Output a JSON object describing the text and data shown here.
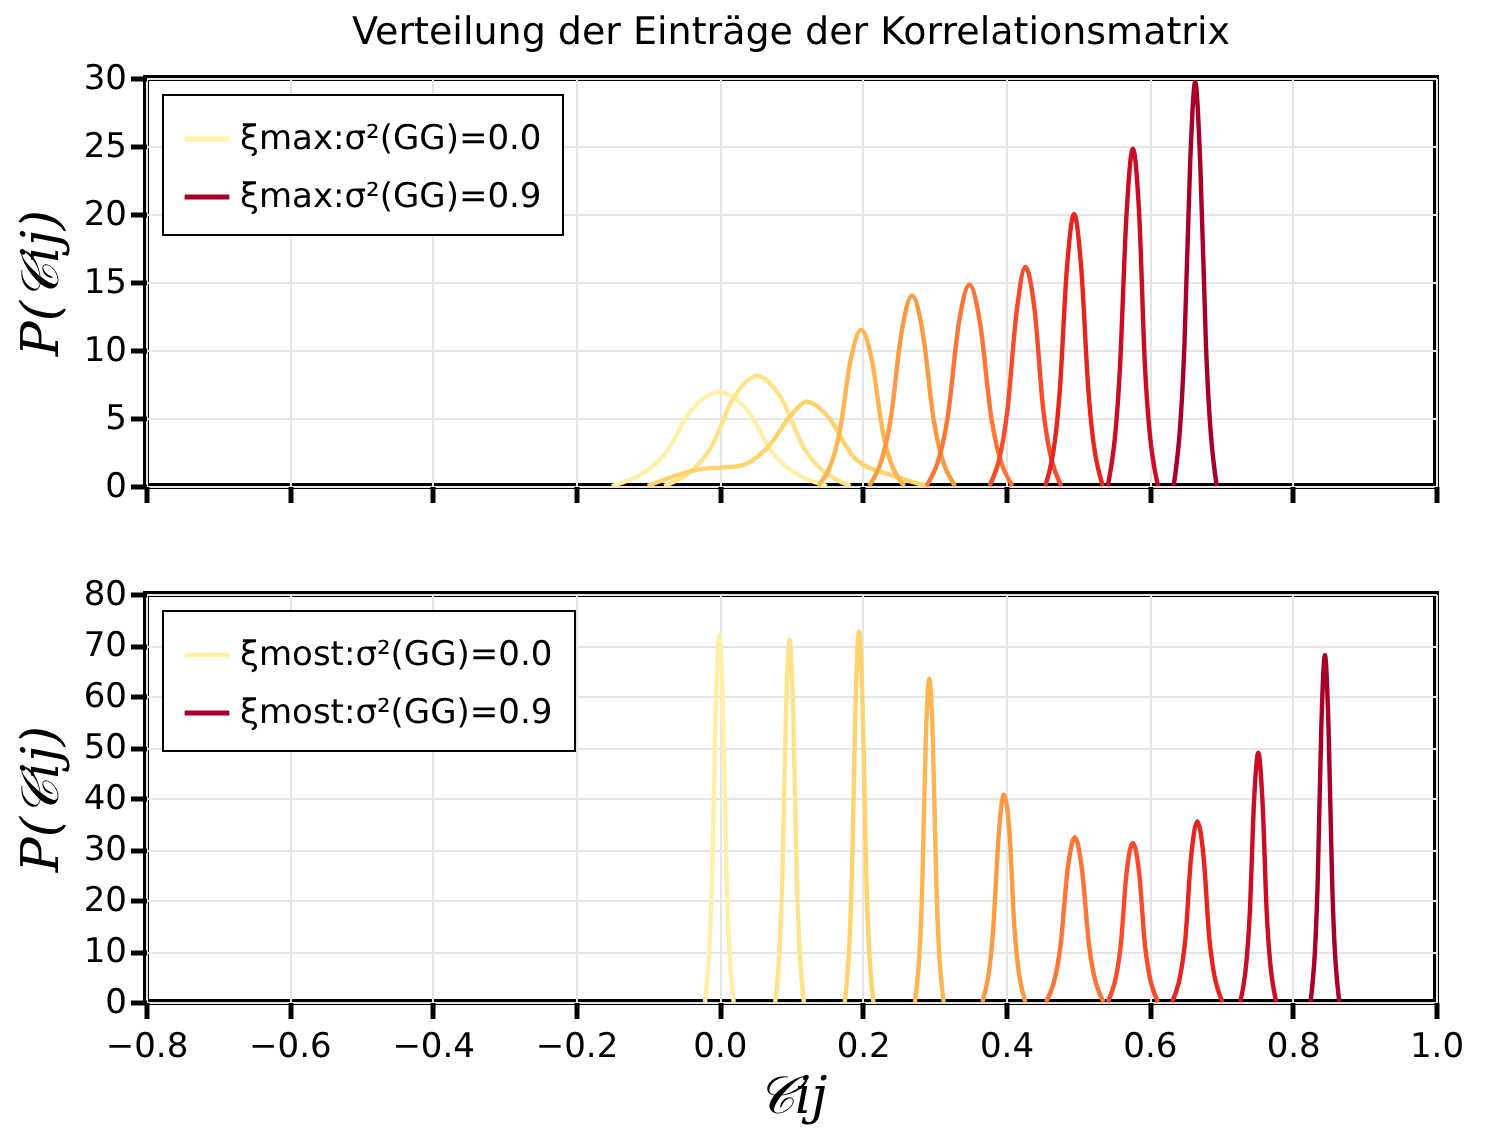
{
  "chart_data": [
    {
      "type": "line",
      "title": "Verteilung der Einträge der Korrelationsmatrix",
      "ylabel": "P(𝒞ij)",
      "xlim": [
        -0.8,
        1.0
      ],
      "xticks": [
        -0.8,
        -0.6,
        -0.4,
        -0.2,
        0.0,
        0.2,
        0.4,
        0.6,
        0.8,
        1.0
      ],
      "ylim": [
        0,
        30
      ],
      "yticks": [
        0,
        5,
        10,
        15,
        20,
        25,
        30
      ],
      "grid": true,
      "legend": "top left",
      "tick_labels": "y",
      "line_style": "solid",
      "marker": "none",
      "series": [
        {
          "name": "ξmax:σ²(GG)=0.0",
          "color": "#fff0a8",
          "x": [
            -0.15,
            -0.075,
            -0.04,
            0,
            0.04,
            0.075,
            0.15
          ],
          "values": [
            0,
            2.4,
            5.5,
            6.9,
            5.5,
            2.4,
            0
          ]
        },
        {
          "color": "#ffe38a",
          "x": [
            -0.077,
            -0.012,
            0.02,
            0.053,
            0.086,
            0.118,
            0.183
          ],
          "values": [
            0,
            2.8,
            6.5,
            8.1,
            6.5,
            2.8,
            0
          ]
        },
        {
          "color": "#fed36c",
          "x": [
            -0.1,
            -0.03,
            0.03,
            0.07,
            0.1,
            0.122,
            0.15,
            0.19,
            0.24,
            0.29
          ],
          "values": [
            0,
            1.2,
            1.5,
            3.0,
            5.2,
            6.2,
            5.2,
            2.0,
            0.8,
            0
          ]
        },
        {
          "color": "#feb54f",
          "x": [
            0.138,
            0.168,
            0.183,
            0.198,
            0.213,
            0.228,
            0.258
          ],
          "values": [
            0,
            4.0,
            9.2,
            11.5,
            9.2,
            4.0,
            0
          ]
        },
        {
          "color": "#fd9a41",
          "x": [
            0.209,
            0.239,
            0.254,
            0.269,
            0.284,
            0.299,
            0.329
          ],
          "values": [
            0,
            4.9,
            11.2,
            14.0,
            11.2,
            4.9,
            0
          ]
        },
        {
          "color": "#fd7536",
          "x": [
            0.289,
            0.319,
            0.334,
            0.349,
            0.364,
            0.379,
            0.409
          ],
          "values": [
            0,
            5.2,
            11.9,
            14.8,
            11.9,
            5.2,
            0
          ]
        },
        {
          "color": "#f94a29",
          "x": [
            0.377,
            0.402,
            0.415,
            0.427,
            0.44,
            0.452,
            0.477
          ],
          "values": [
            0,
            5.6,
            12.9,
            16.1,
            12.9,
            5.6,
            0
          ]
        },
        {
          "color": "#e8241f",
          "x": [
            0.455,
            0.475,
            0.485,
            0.495,
            0.505,
            0.515,
            0.535
          ],
          "values": [
            0,
            7,
            16,
            20,
            16,
            7,
            0
          ]
        },
        {
          "color": "#cb0c22",
          "x": [
            0.542,
            0.559,
            0.568,
            0.577,
            0.586,
            0.594,
            0.612
          ],
          "values": [
            0,
            8.7,
            19.8,
            24.8,
            19.8,
            8.7,
            0
          ]
        },
        {
          "name": "ξmax:σ²(GG)=0.9",
          "color": "#a80026",
          "x": [
            0.634,
            0.649,
            0.657,
            0.664,
            0.671,
            0.679,
            0.694
          ],
          "values": [
            0,
            10.4,
            23.8,
            29.7,
            23.8,
            10.4,
            0
          ]
        }
      ]
    },
    {
      "type": "line",
      "xlabel": "𝒞ij",
      "ylabel": "P(𝒞ij)",
      "xlim": [
        -0.8,
        1.0
      ],
      "xticks": [
        -0.8,
        -0.6,
        -0.4,
        -0.2,
        {
          "value": 0,
          "label": "0.0"
        },
        0.2,
        0.4,
        0.6,
        0.8,
        {
          "value": 1,
          "label": "1.0"
        }
      ],
      "ylim": [
        0,
        80
      ],
      "yticks": [
        0,
        10,
        20,
        30,
        40,
        50,
        60,
        70,
        80
      ],
      "grid": true,
      "legend": "top left",
      "line_style": "solid",
      "marker": "none",
      "series": [
        {
          "name": "ξmost:σ²(GG)=0.0",
          "color": "#fff0a8",
          "x": [
            -0.02,
            -0.01,
            -0.005,
            0,
            0.005,
            0.01,
            0.02
          ],
          "values": [
            0,
            25,
            58,
            71.9,
            58,
            25,
            0
          ]
        },
        {
          "color": "#ffe38a",
          "x": [
            0.078,
            0.088,
            0.093,
            0.098,
            0.103,
            0.108,
            0.118
          ],
          "values": [
            0,
            25,
            57,
            71,
            57,
            25,
            0
          ]
        },
        {
          "color": "#fed36c",
          "x": [
            0.175,
            0.185,
            0.19,
            0.195,
            0.2,
            0.205,
            0.215
          ],
          "values": [
            0,
            25,
            58,
            72.6,
            58,
            25,
            0
          ]
        },
        {
          "color": "#feb54f",
          "x": [
            0.273,
            0.283,
            0.288,
            0.293,
            0.298,
            0.303,
            0.313
          ],
          "values": [
            0,
            22,
            51,
            63.4,
            51,
            22,
            0
          ]
        },
        {
          "color": "#fd9a41",
          "x": [
            0.367,
            0.382,
            0.39,
            0.397,
            0.405,
            0.412,
            0.427
          ],
          "values": [
            0,
            14,
            33,
            40.7,
            33,
            14,
            0
          ]
        },
        {
          "color": "#fd7536",
          "x": [
            0.456,
            0.476,
            0.486,
            0.496,
            0.506,
            0.516,
            0.536
          ],
          "values": [
            0,
            11,
            26,
            32.3,
            26,
            11,
            0
          ]
        },
        {
          "color": "#f94a29",
          "x": [
            0.542,
            0.56,
            0.568,
            0.577,
            0.586,
            0.594,
            0.612
          ],
          "values": [
            0,
            11,
            25,
            31.2,
            25,
            11,
            0
          ]
        },
        {
          "color": "#e8241f",
          "x": [
            0.632,
            0.65,
            0.658,
            0.667,
            0.676,
            0.684,
            0.702
          ],
          "values": [
            0,
            12,
            28,
            35.4,
            28,
            12,
            0
          ]
        },
        {
          "color": "#cb0c22",
          "x": [
            0.727,
            0.74,
            0.746,
            0.752,
            0.758,
            0.764,
            0.777
          ],
          "values": [
            0,
            17,
            39,
            48.9,
            39,
            17,
            0
          ]
        },
        {
          "name": "ξmost:σ²(GG)=0.9",
          "color": "#a80026",
          "x": [
            0.825,
            0.835,
            0.84,
            0.845,
            0.85,
            0.855,
            0.865
          ],
          "values": [
            0,
            24,
            54,
            68,
            54,
            24,
            0
          ]
        }
      ]
    }
  ]
}
